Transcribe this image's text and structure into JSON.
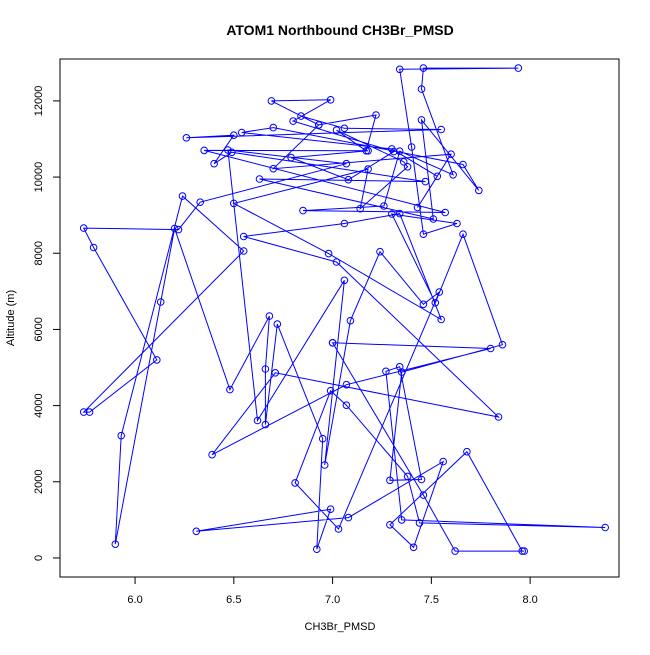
{
  "chart_data": {
    "type": "line",
    "title": "ATOM1 Northbound CH3Br_PMSD",
    "xlabel": "CH3Br_PMSD",
    "ylabel": "Altitude (m)",
    "xlim": [
      5.62,
      8.45
    ],
    "ylim": [
      -500,
      13100
    ],
    "xticks": [
      6.0,
      6.5,
      7.0,
      7.5,
      8.0
    ],
    "xtick_labels": [
      "6.0",
      "6.5",
      "7.0",
      "7.5",
      "8.0"
    ],
    "yticks": [
      0,
      2000,
      4000,
      6000,
      8000,
      10000,
      12000
    ],
    "ytick_labels": [
      "0",
      "2000",
      "4000",
      "6000",
      "8000",
      "10000",
      "12000"
    ],
    "grid": false,
    "legend": "none",
    "series": [
      {
        "color": "#0000ff",
        "markers": "open-circle",
        "points": [
          [
            7.97,
            180
          ],
          [
            7.62,
            180
          ],
          [
            7.46,
            1650
          ],
          [
            7.0,
            5650
          ],
          [
            7.0,
            5650
          ],
          [
            7.8,
            5500
          ],
          [
            7.07,
            4550
          ],
          [
            6.39,
            2710
          ],
          [
            6.71,
            4860
          ],
          [
            7.84,
            3700
          ],
          [
            7.02,
            7770
          ],
          [
            6.55,
            8440
          ],
          [
            7.06,
            8780
          ],
          [
            7.34,
            9040
          ],
          [
            7.55,
            6260
          ],
          [
            6.98,
            7990
          ],
          [
            6.5,
            9310
          ],
          [
            7.18,
            10210
          ],
          [
            7.14,
            9170
          ],
          [
            7.38,
            10270
          ],
          [
            7.36,
            10400
          ],
          [
            7.02,
            11230
          ],
          [
            7.17,
            10690
          ],
          [
            7.22,
            11630
          ],
          [
            6.93,
            11370
          ],
          [
            6.7,
            10220
          ],
          [
            7.6,
            10600
          ],
          [
            7.43,
            9200
          ],
          [
            7.53,
            10020
          ],
          [
            7.3,
            10740
          ],
          [
            6.54,
            11170
          ],
          [
            6.7,
            11300
          ],
          [
            7.66,
            10330
          ],
          [
            7.74,
            9650
          ],
          [
            7.45,
            11500
          ],
          [
            7.51,
            8900
          ],
          [
            6.63,
            9950
          ],
          [
            7.47,
            9880
          ],
          [
            6.49,
            10650
          ],
          [
            6.4,
            10350
          ],
          [
            6.5,
            11100
          ],
          [
            6.26,
            11030
          ],
          [
            7.55,
            11250
          ],
          [
            7.06,
            11280
          ],
          [
            6.84,
            11600
          ],
          [
            6.93,
            11370
          ],
          [
            6.69,
            12000
          ],
          [
            6.99,
            12030
          ],
          [
            6.8,
            11470
          ],
          [
            7.31,
            10670
          ],
          [
            7.08,
            9930
          ],
          [
            6.79,
            10510
          ],
          [
            7.18,
            10690
          ],
          [
            6.35,
            10700
          ],
          [
            7.57,
            9070
          ],
          [
            6.85,
            9120
          ],
          [
            7.26,
            9240
          ],
          [
            7.34,
            10680
          ],
          [
            7.61,
            10060
          ],
          [
            7.45,
            12310
          ],
          [
            7.46,
            12860
          ],
          [
            7.94,
            12860
          ],
          [
            7.34,
            12830
          ],
          [
            7.4,
            10790
          ],
          [
            7.46,
            8500
          ],
          [
            7.63,
            8780
          ],
          [
            7.3,
            9030
          ],
          [
            7.52,
            6700
          ],
          [
            7.66,
            8500
          ],
          [
            7.86,
            5600
          ],
          [
            7.35,
            4880
          ],
          [
            7.29,
            2040
          ],
          [
            7.45,
            2060
          ],
          [
            7.34,
            5020
          ],
          [
            7.27,
            4900
          ],
          [
            7.35,
            1000
          ],
          [
            8.38,
            800
          ],
          [
            7.44,
            920
          ],
          [
            7.38,
            2140
          ],
          [
            7.07,
            4010
          ],
          [
            6.99,
            4390
          ],
          [
            6.81,
            1970
          ],
          [
            7.03,
            760
          ],
          [
            7.54,
            6980
          ],
          [
            7.46,
            6660
          ],
          [
            7.24,
            8040
          ],
          [
            7.09,
            6230
          ],
          [
            6.96,
            2440
          ],
          [
            7.06,
            7290
          ],
          [
            6.62,
            3610
          ],
          [
            6.47,
            10710
          ],
          [
            7.07,
            10350
          ],
          [
            6.33,
            9340
          ],
          [
            6.22,
            8620
          ],
          [
            5.74,
            8660
          ],
          [
            5.79,
            8150
          ],
          [
            6.11,
            5200
          ],
          [
            5.77,
            3830
          ],
          [
            5.74,
            3830
          ],
          [
            6.55,
            8060
          ],
          [
            6.24,
            9500
          ],
          [
            5.93,
            3210
          ],
          [
            5.9,
            360
          ],
          [
            6.13,
            6720
          ],
          [
            6.2,
            8650
          ],
          [
            6.48,
            4420
          ],
          [
            6.68,
            6350
          ],
          [
            6.66,
            4960
          ],
          [
            6.66,
            3500
          ],
          [
            6.72,
            6140
          ],
          [
            6.95,
            3130
          ],
          [
            6.92,
            230
          ],
          [
            6.99,
            1280
          ],
          [
            6.31,
            700
          ],
          [
            7.08,
            1060
          ],
          [
            7.56,
            2530
          ],
          [
            7.41,
            280
          ],
          [
            7.29,
            870
          ],
          [
            7.68,
            2790
          ],
          [
            7.96,
            180
          ]
        ]
      }
    ]
  }
}
